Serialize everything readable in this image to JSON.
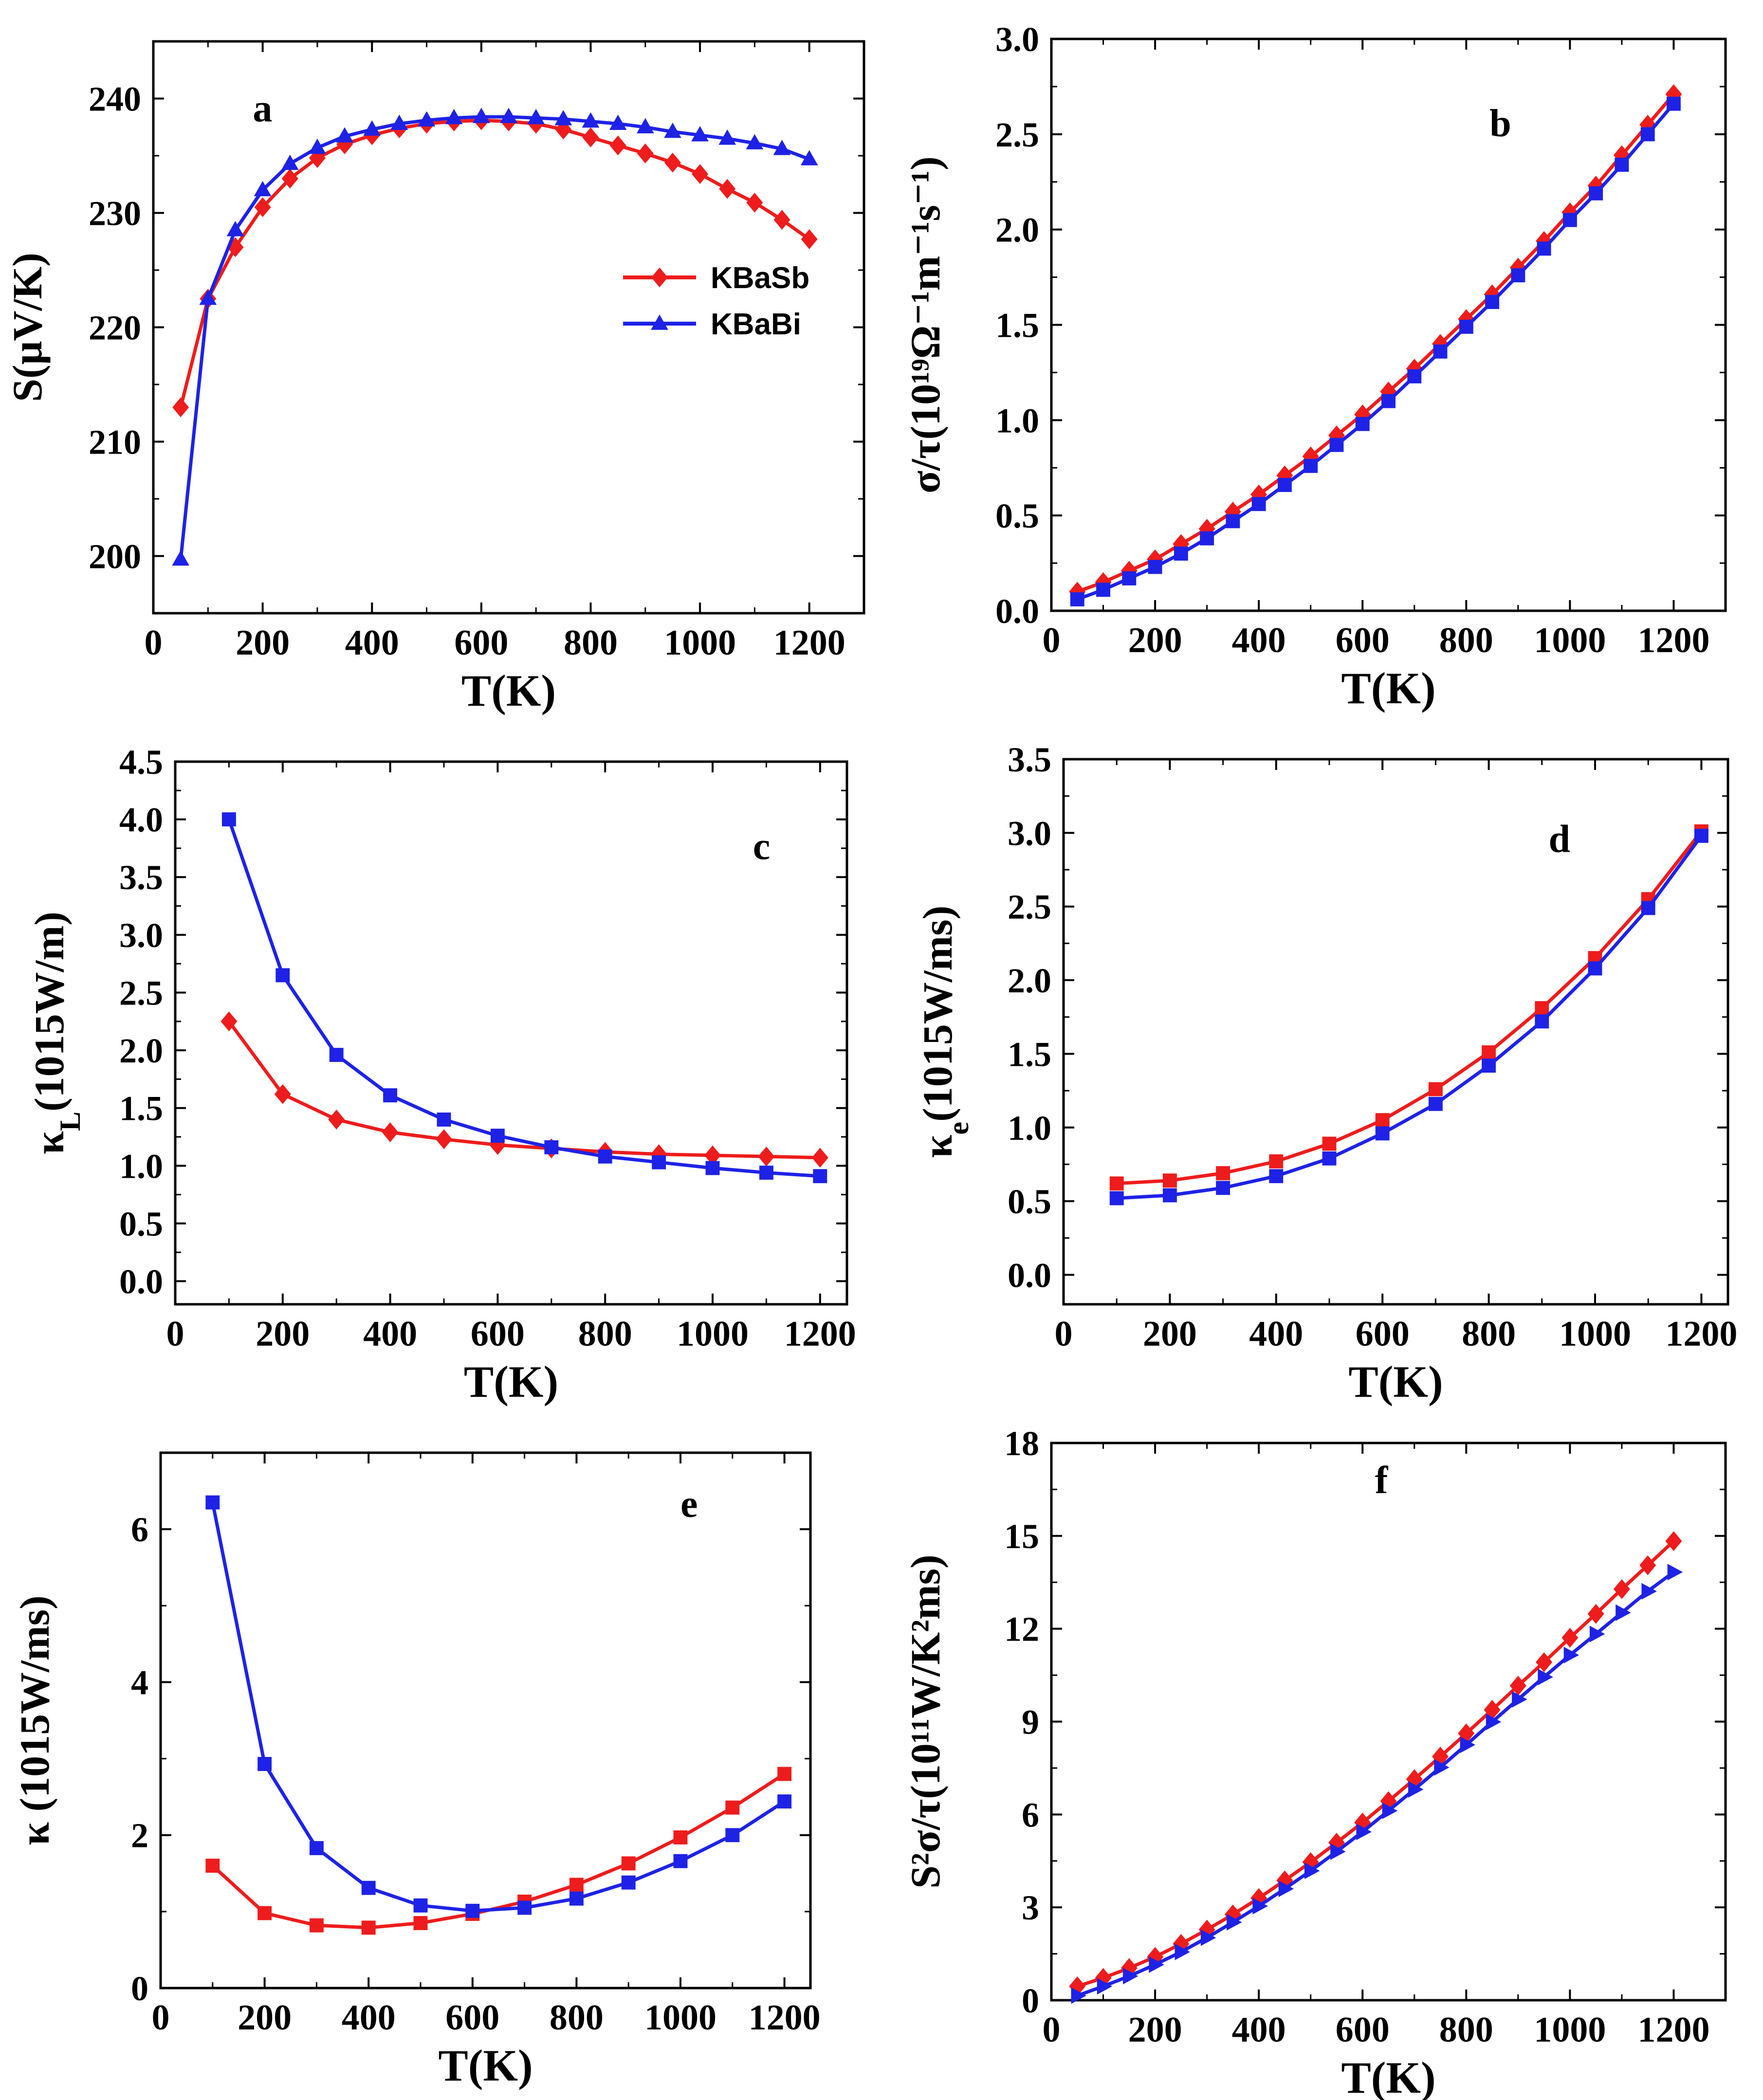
{
  "colors": {
    "KBaSb": "#ee1c1c",
    "KBaBi": "#1e22e6",
    "axis": "#000000"
  },
  "chart_data": [
    {
      "id": "a",
      "type": "line",
      "panel_label": "a",
      "xlabel": "T(K)",
      "ylabel": "S(μV/K)",
      "xlim": [
        0,
        1300
      ],
      "ylim": [
        195,
        245
      ],
      "xticks": [
        0,
        200,
        400,
        600,
        800,
        1000,
        1200
      ],
      "yticks": [
        200,
        210,
        220,
        230,
        240
      ],
      "ytick_decimals": 0,
      "legend": {
        "placement": "center-right",
        "entries": [
          "KBaSb",
          "KBaBi"
        ]
      },
      "series": [
        {
          "name": "KBaSb",
          "marker": "diamond",
          "x": [
            50,
            100,
            150,
            200,
            250,
            300,
            350,
            400,
            450,
            500,
            550,
            600,
            650,
            700,
            750,
            800,
            850,
            900,
            950,
            1000,
            1050,
            1100,
            1150,
            1200
          ],
          "y": [
            213,
            222.5,
            227,
            230.5,
            233,
            234.8,
            236,
            236.8,
            237.4,
            237.8,
            238,
            238.1,
            238,
            237.8,
            237.3,
            236.6,
            235.9,
            235.2,
            234.4,
            233.4,
            232.1,
            230.9,
            229.4,
            227.7
          ]
        },
        {
          "name": "KBaBi",
          "marker": "triangle",
          "x": [
            50,
            100,
            150,
            200,
            250,
            300,
            350,
            400,
            450,
            500,
            550,
            600,
            650,
            700,
            750,
            800,
            850,
            900,
            950,
            1000,
            1050,
            1100,
            1150,
            1200
          ],
          "y": [
            199.7,
            222.5,
            228.5,
            232,
            234.3,
            235.7,
            236.7,
            237.3,
            237.8,
            238.1,
            238.3,
            238.4,
            238.4,
            238.3,
            238.2,
            238,
            237.8,
            237.5,
            237.1,
            236.8,
            236.5,
            236.1,
            235.6,
            234.7
          ]
        }
      ]
    },
    {
      "id": "b",
      "type": "line",
      "panel_label": "b",
      "xlabel": "T(K)",
      "ylabel": "σ/τ(10¹⁹Ω⁻¹m⁻¹s⁻¹)",
      "xlim": [
        0,
        1300
      ],
      "ylim": [
        0,
        3.0
      ],
      "xticks": [
        0,
        200,
        400,
        600,
        800,
        1000,
        1200
      ],
      "yticks": [
        0.0,
        0.5,
        1.0,
        1.5,
        2.0,
        2.5,
        3.0
      ],
      "ytick_decimals": 1,
      "series": [
        {
          "name": "KBaSb",
          "marker": "diamond",
          "x": [
            50,
            100,
            150,
            200,
            250,
            300,
            350,
            400,
            450,
            500,
            550,
            600,
            650,
            700,
            750,
            800,
            850,
            900,
            950,
            1000,
            1050,
            1100,
            1150,
            1200
          ],
          "y": [
            0.1,
            0.15,
            0.21,
            0.27,
            0.35,
            0.43,
            0.52,
            0.61,
            0.71,
            0.81,
            0.92,
            1.03,
            1.15,
            1.27,
            1.4,
            1.53,
            1.66,
            1.8,
            1.94,
            2.09,
            2.23,
            2.39,
            2.55,
            2.71
          ]
        },
        {
          "name": "KBaBi",
          "marker": "square",
          "x": [
            50,
            100,
            150,
            200,
            250,
            300,
            350,
            400,
            450,
            500,
            550,
            600,
            650,
            700,
            750,
            800,
            850,
            900,
            950,
            1000,
            1050,
            1100,
            1150,
            1200
          ],
          "y": [
            0.06,
            0.11,
            0.17,
            0.23,
            0.3,
            0.38,
            0.47,
            0.56,
            0.66,
            0.76,
            0.87,
            0.98,
            1.1,
            1.23,
            1.36,
            1.49,
            1.62,
            1.76,
            1.9,
            2.05,
            2.19,
            2.34,
            2.5,
            2.66
          ]
        }
      ]
    },
    {
      "id": "c",
      "type": "line",
      "panel_label": "c",
      "xlabel": "T(K)",
      "ylabel": "κL(1015W/m)",
      "xlim": [
        0,
        1250
      ],
      "ylim": [
        -0.2,
        4.5
      ],
      "xticks": [
        0,
        200,
        400,
        600,
        800,
        1000,
        1200
      ],
      "yticks": [
        0.0,
        0.5,
        1.0,
        1.5,
        2.0,
        2.5,
        3.0,
        3.5,
        4.0,
        4.5
      ],
      "ytick_decimals": 1,
      "series": [
        {
          "name": "KBaSb",
          "marker": "diamond",
          "x": [
            100,
            200,
            300,
            400,
            500,
            600,
            700,
            800,
            900,
            1000,
            1100,
            1200
          ],
          "y": [
            2.25,
            1.62,
            1.4,
            1.29,
            1.23,
            1.18,
            1.15,
            1.12,
            1.1,
            1.09,
            1.08,
            1.07
          ]
        },
        {
          "name": "KBaBi",
          "marker": "square",
          "x": [
            100,
            200,
            300,
            400,
            500,
            600,
            700,
            800,
            900,
            1000,
            1100,
            1200
          ],
          "y": [
            4.0,
            2.65,
            1.96,
            1.61,
            1.4,
            1.26,
            1.16,
            1.08,
            1.03,
            0.98,
            0.94,
            0.91
          ]
        }
      ]
    },
    {
      "id": "d",
      "type": "line",
      "panel_label": "d",
      "xlabel": "T(K)",
      "ylabel": "κe(1015W/ms)",
      "xlim": [
        0,
        1250
      ],
      "ylim": [
        -0.2,
        3.5
      ],
      "xticks": [
        0,
        200,
        400,
        600,
        800,
        1000,
        1200
      ],
      "yticks": [
        0.0,
        0.5,
        1.0,
        1.5,
        2.0,
        2.5,
        3.0,
        3.5
      ],
      "ytick_decimals": 1,
      "series": [
        {
          "name": "KBaSb",
          "marker": "square",
          "x": [
            100,
            200,
            300,
            400,
            500,
            600,
            700,
            800,
            900,
            1000,
            1100,
            1200
          ],
          "y": [
            0.62,
            0.64,
            0.69,
            0.77,
            0.89,
            1.05,
            1.26,
            1.51,
            1.81,
            2.15,
            2.55,
            3.01
          ]
        },
        {
          "name": "KBaBi",
          "marker": "square",
          "x": [
            100,
            200,
            300,
            400,
            500,
            600,
            700,
            800,
            900,
            1000,
            1100,
            1200
          ],
          "y": [
            0.52,
            0.54,
            0.59,
            0.67,
            0.79,
            0.96,
            1.16,
            1.42,
            1.72,
            2.08,
            2.49,
            2.98
          ]
        }
      ]
    },
    {
      "id": "e",
      "type": "line",
      "panel_label": "e",
      "xlabel": "T(K)",
      "ylabel": "κ (1015W/ms)",
      "xlim": [
        0,
        1250
      ],
      "ylim": [
        0,
        7
      ],
      "xticks": [
        0,
        200,
        400,
        600,
        800,
        1000,
        1200
      ],
      "yticks": [
        0,
        2,
        4,
        6
      ],
      "ytick_decimals": 0,
      "series": [
        {
          "name": "KBaSb",
          "marker": "square",
          "x": [
            100,
            200,
            300,
            400,
            500,
            600,
            700,
            800,
            900,
            1000,
            1100,
            1200
          ],
          "y": [
            1.6,
            0.98,
            0.82,
            0.79,
            0.85,
            0.97,
            1.13,
            1.35,
            1.63,
            1.97,
            2.36,
            2.8
          ]
        },
        {
          "name": "KBaBi",
          "marker": "square",
          "x": [
            100,
            200,
            300,
            400,
            500,
            600,
            700,
            800,
            900,
            1000,
            1100,
            1200
          ],
          "y": [
            6.35,
            2.93,
            1.83,
            1.31,
            1.08,
            1.01,
            1.05,
            1.17,
            1.38,
            1.66,
            2.0,
            2.44
          ]
        }
      ]
    },
    {
      "id": "f",
      "type": "line",
      "panel_label": "f",
      "xlabel": "T(K)",
      "ylabel": "S²σ/τ(10¹¹W/K²ms)",
      "xlim": [
        0,
        1300
      ],
      "ylim": [
        0,
        18
      ],
      "xticks": [
        0,
        200,
        400,
        600,
        800,
        1000,
        1200
      ],
      "yticks": [
        0,
        3,
        6,
        9,
        12,
        15,
        18
      ],
      "ytick_decimals": 0,
      "series": [
        {
          "name": "KBaSb",
          "marker": "diamond",
          "x": [
            50,
            100,
            150,
            200,
            250,
            300,
            350,
            400,
            450,
            500,
            550,
            600,
            650,
            700,
            750,
            800,
            850,
            900,
            950,
            1000,
            1050,
            1100,
            1150,
            1200
          ],
          "y": [
            0.45,
            0.72,
            1.04,
            1.4,
            1.82,
            2.28,
            2.77,
            3.3,
            3.87,
            4.46,
            5.09,
            5.74,
            6.43,
            7.14,
            7.87,
            8.62,
            9.38,
            10.16,
            10.92,
            11.71,
            12.48,
            13.28,
            14.05,
            14.83
          ]
        },
        {
          "name": "KBaBi",
          "marker": "triangle-right",
          "x": [
            50,
            100,
            150,
            200,
            250,
            300,
            350,
            400,
            450,
            500,
            550,
            600,
            650,
            700,
            750,
            800,
            850,
            900,
            950,
            1000,
            1050,
            1100,
            1150,
            1200
          ],
          "y": [
            0.15,
            0.45,
            0.78,
            1.15,
            1.56,
            2.02,
            2.52,
            3.04,
            3.6,
            4.18,
            4.8,
            5.44,
            6.12,
            6.81,
            7.52,
            8.25,
            8.99,
            9.72,
            10.44,
            11.15,
            11.83,
            12.52,
            13.21,
            13.83
          ]
        }
      ]
    }
  ]
}
